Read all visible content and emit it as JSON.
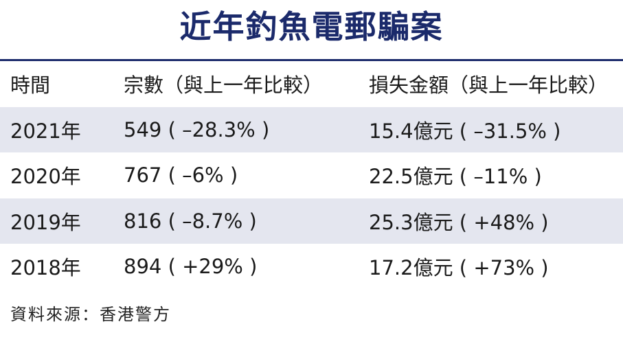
{
  "header": {
    "title": "近年釣魚電郵騙案"
  },
  "table": {
    "columns": [
      "時間",
      "宗數（與上一年比較）",
      "損失金額（與上一年比較）"
    ],
    "rows": [
      [
        "2021年",
        "549 ( –28.3% )",
        "15.4億元 ( –31.5% )"
      ],
      [
        "2020年",
        "767 ( –6% )",
        "22.5億元 ( –11% )"
      ],
      [
        "2019年",
        "816 ( –8.7% )",
        "25.3億元 ( +48% )"
      ],
      [
        "2018年",
        "894 ( +29% )",
        "17.2億元 ( +73% )"
      ]
    ]
  },
  "footer": {
    "source": "資料來源：香港警方"
  }
}
